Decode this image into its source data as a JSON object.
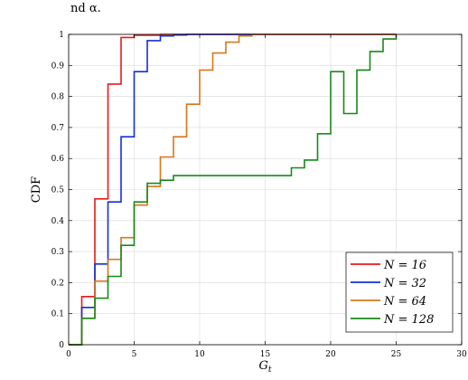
{
  "page": {
    "top_text": "nd α."
  },
  "chart_data": {
    "type": "line",
    "step": true,
    "xlabel": "G_t",
    "ylabel": "CDF",
    "xlim": [
      0,
      30
    ],
    "ylim": [
      0,
      1
    ],
    "xticks": [
      0,
      5,
      10,
      15,
      20,
      25,
      30
    ],
    "yticks": [
      0,
      0.1,
      0.2,
      0.3,
      0.4,
      0.5,
      0.6,
      0.7,
      0.8,
      0.9,
      1
    ],
    "grid": true,
    "legend_position": "bottom-right",
    "series": [
      {
        "name": "N = 16",
        "color": "#e8191b",
        "x": [
          0,
          1,
          2,
          3,
          4,
          5,
          7,
          25
        ],
        "y": [
          0,
          0.155,
          0.47,
          0.84,
          0.99,
          0.997,
          1.0,
          1.0
        ]
      },
      {
        "name": "N = 32",
        "color": "#1330d6",
        "x": [
          0,
          1,
          2,
          3,
          4,
          5,
          6,
          7,
          8,
          9,
          25
        ],
        "y": [
          0,
          0.12,
          0.26,
          0.46,
          0.67,
          0.88,
          0.98,
          0.995,
          0.998,
          1.0,
          1.0
        ]
      },
      {
        "name": "N = 64",
        "color": "#d6781a",
        "x": [
          0,
          1,
          2,
          3,
          4,
          5,
          6,
          7,
          8,
          9,
          10,
          11,
          12,
          13,
          14,
          25
        ],
        "y": [
          0,
          0.085,
          0.205,
          0.275,
          0.345,
          0.45,
          0.51,
          0.605,
          0.67,
          0.775,
          0.885,
          0.94,
          0.975,
          0.995,
          1.0,
          1.0
        ]
      },
      {
        "name": "N = 128",
        "color": "#178a17",
        "x": [
          0,
          1,
          2,
          3,
          4,
          5,
          6,
          7,
          8,
          17,
          18,
          19,
          20,
          21,
          22,
          23,
          24,
          25
        ],
        "y": [
          0,
          0.085,
          0.15,
          0.22,
          0.32,
          0.46,
          0.52,
          0.53,
          0.545,
          0.57,
          0.595,
          0.68,
          0.88,
          0.745,
          0.885,
          0.945,
          0.985,
          1.0
        ]
      }
    ]
  }
}
